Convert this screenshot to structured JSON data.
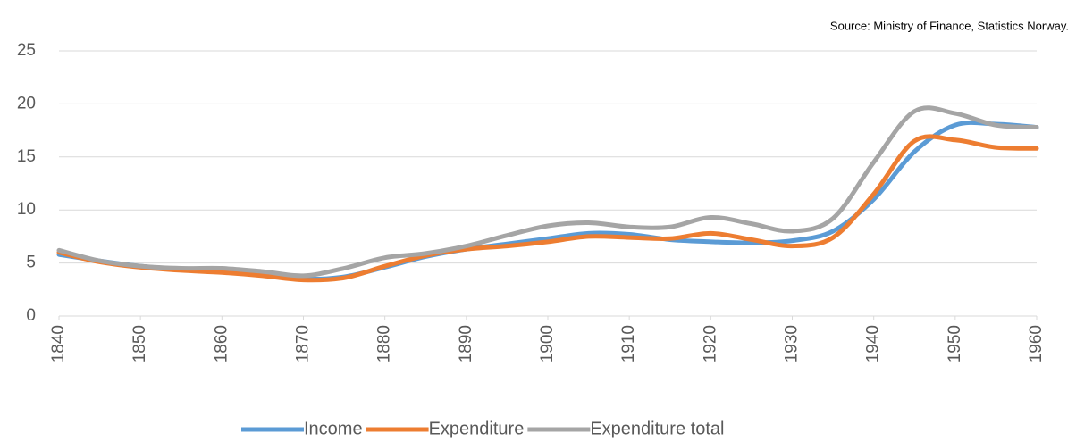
{
  "chart_data": {
    "type": "line",
    "annotation": "Source: Ministry of Finance, Statistics Norway.",
    "x": [
      1840,
      1845,
      1850,
      1855,
      1860,
      1865,
      1870,
      1875,
      1880,
      1885,
      1890,
      1895,
      1900,
      1905,
      1910,
      1915,
      1920,
      1925,
      1930,
      1935,
      1940,
      1945,
      1950,
      1955,
      1960
    ],
    "series": [
      {
        "name": "Income",
        "color": "#5b9bd5",
        "values": [
          5.8,
          5.2,
          4.7,
          4.4,
          4.2,
          3.9,
          3.5,
          3.7,
          4.6,
          5.6,
          6.3,
          6.8,
          7.3,
          7.8,
          7.7,
          7.2,
          7.0,
          6.9,
          7.1,
          8.0,
          11.0,
          15.5,
          18.0,
          18.1,
          17.8
        ]
      },
      {
        "name": "Expenditure",
        "color": "#ed7d31",
        "values": [
          6.0,
          5.1,
          4.6,
          4.3,
          4.1,
          3.8,
          3.4,
          3.6,
          4.7,
          5.7,
          6.3,
          6.6,
          7.0,
          7.5,
          7.4,
          7.3,
          7.8,
          7.2,
          6.6,
          7.4,
          11.5,
          16.5,
          16.6,
          15.9,
          15.8
        ]
      },
      {
        "name": "Expenditure total",
        "color": "#a5a5a5",
        "values": [
          6.2,
          5.2,
          4.7,
          4.5,
          4.5,
          4.2,
          3.8,
          4.5,
          5.5,
          5.9,
          6.6,
          7.6,
          8.5,
          8.8,
          8.4,
          8.4,
          9.3,
          8.7,
          8.0,
          9.2,
          14.5,
          19.3,
          19.1,
          18.0,
          17.8
        ]
      }
    ],
    "xlim": [
      1840,
      1960
    ],
    "xticks": [
      1840,
      1850,
      1860,
      1870,
      1880,
      1890,
      1900,
      1910,
      1920,
      1930,
      1940,
      1950,
      1960
    ],
    "ylim": [
      0,
      25
    ],
    "yticks": [
      0,
      5,
      10,
      15,
      20,
      25
    ],
    "grid": true,
    "legend": "bottom"
  }
}
